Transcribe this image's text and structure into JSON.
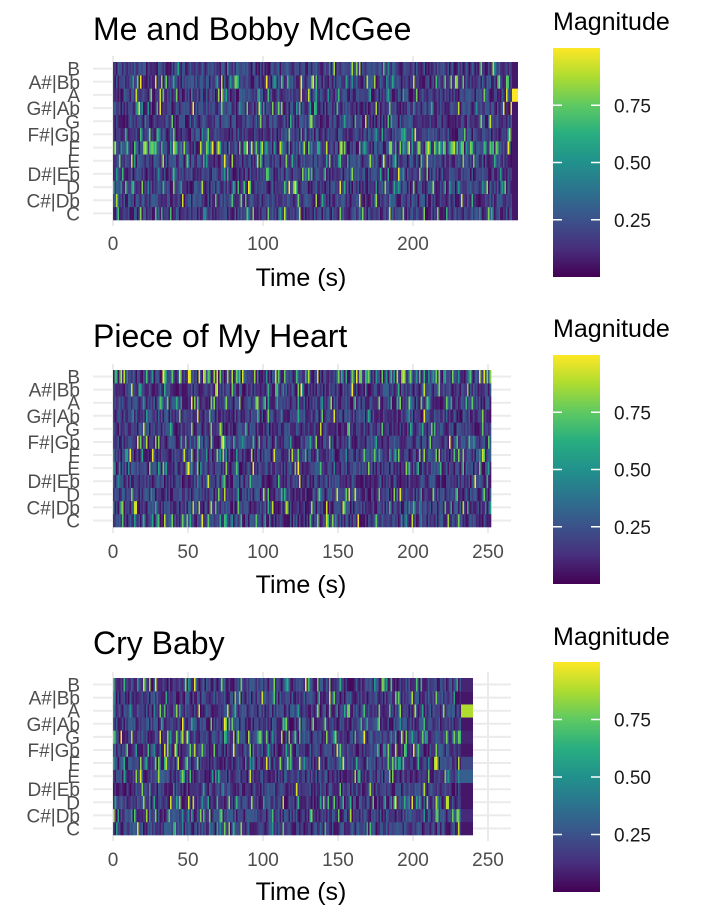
{
  "chart_data": [
    {
      "type": "heatmap",
      "title": "Me and Bobby McGee",
      "xlabel": "Time (s)",
      "ylabel": "",
      "xlim": [
        0,
        270
      ],
      "x_ticks": [
        0,
        100,
        200
      ],
      "y_categories": [
        "C",
        "C#|Db",
        "D",
        "D#|Eb",
        "E",
        "F",
        "F#|Gb",
        "G",
        "G#|Ab",
        "A",
        "A#|Bb",
        "B"
      ],
      "colorbar": {
        "title": "Magnitude",
        "ticks": [
          0.25,
          0.5,
          0.75
        ],
        "tick_labels": [
          "0.25",
          "0.50",
          "0.75"
        ],
        "range": [
          0,
          1
        ],
        "palette": "viridis"
      },
      "seed": 11,
      "band_probs": [
        0.1,
        0.08,
        0.1,
        0.06,
        0.09,
        0.3,
        0.06,
        0.05,
        0.12,
        0.07,
        0.12,
        0.05
      ],
      "end_column": {
        "start": 266,
        "values": [
          0.06,
          0.06,
          0.06,
          0.06,
          0.06,
          0.06,
          0.06,
          0.06,
          0.06,
          1.0,
          0.06,
          0.06
        ]
      }
    },
    {
      "type": "heatmap",
      "title": "Piece of My Heart",
      "xlabel": "Time (s)",
      "ylabel": "",
      "xlim": [
        0,
        252
      ],
      "x_ticks": [
        0,
        50,
        100,
        150,
        200,
        250
      ],
      "y_categories": [
        "C",
        "C#|Db",
        "D",
        "D#|Eb",
        "E",
        "F",
        "F#|Gb",
        "G",
        "G#|Ab",
        "A",
        "A#|Bb",
        "B"
      ],
      "colorbar": {
        "title": "Magnitude",
        "ticks": [
          0.25,
          0.5,
          0.75
        ],
        "tick_labels": [
          "0.25",
          "0.50",
          "0.75"
        ],
        "range": [
          0,
          1
        ],
        "palette": "viridis"
      },
      "seed": 23,
      "band_probs": [
        0.1,
        0.14,
        0.1,
        0.06,
        0.1,
        0.14,
        0.1,
        0.08,
        0.06,
        0.16,
        0.08,
        0.3
      ],
      "end_column": null
    },
    {
      "type": "heatmap",
      "title": "Cry Baby",
      "xlabel": "Time (s)",
      "ylabel": "",
      "xlim": [
        0,
        240
      ],
      "x_ticks": [
        0,
        50,
        100,
        150,
        200,
        250
      ],
      "y_categories": [
        "C",
        "C#|Db",
        "D",
        "D#|Eb",
        "E",
        "F",
        "F#|Gb",
        "G",
        "G#|Ab",
        "A",
        "A#|Bb",
        "B"
      ],
      "colorbar": {
        "title": "Magnitude",
        "ticks": [
          0.25,
          0.5,
          0.75
        ],
        "tick_labels": [
          "0.25",
          "0.50",
          "0.75"
        ],
        "range": [
          0,
          1
        ],
        "palette": "viridis"
      },
      "seed": 37,
      "band_probs": [
        0.08,
        0.1,
        0.18,
        0.06,
        0.1,
        0.16,
        0.12,
        0.16,
        0.08,
        0.12,
        0.08,
        0.1
      ],
      "end_column": {
        "start": 232,
        "values": [
          0.06,
          0.12,
          0.06,
          0.06,
          0.3,
          0.22,
          0.06,
          0.1,
          0.06,
          0.88,
          0.06,
          0.1
        ]
      }
    }
  ]
}
